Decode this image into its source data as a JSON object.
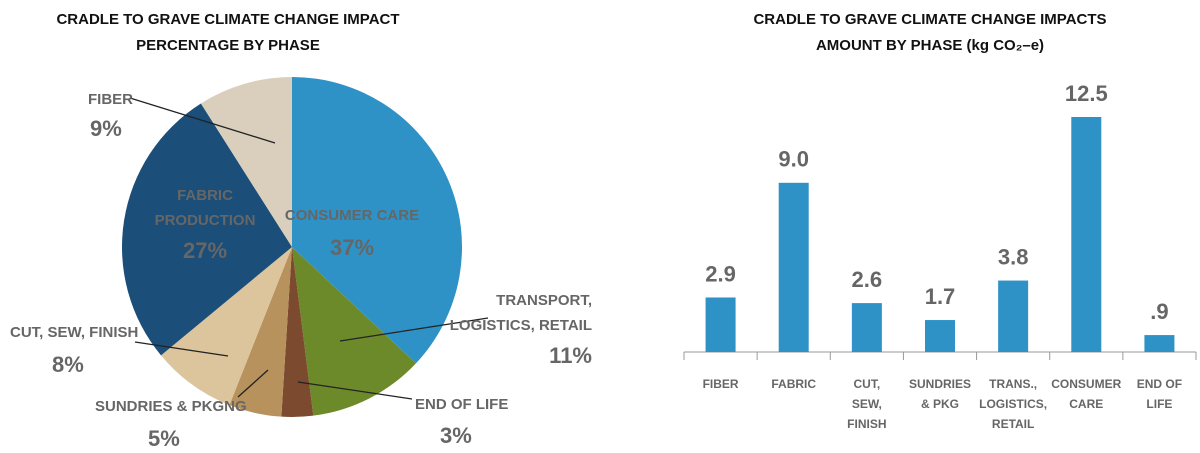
{
  "chart_data": [
    {
      "type": "pie",
      "title": [
        "CRADLE TO GRAVE CLIMATE CHANGE IMPACT",
        "PERCENTAGE BY PHASE"
      ],
      "categories": [
        [
          "CONSUMER CARE"
        ],
        [
          "TRANSPORT,",
          "LOGISTICS, RETAIL"
        ],
        [
          "END OF LIFE"
        ],
        [
          "SUNDRIES & PKGNG"
        ],
        [
          "CUT, SEW, FINISH"
        ],
        [
          "FABRIC",
          "PRODUCTION"
        ],
        [
          "FIBER"
        ]
      ],
      "values": [
        37,
        11,
        3,
        5,
        8,
        27,
        9
      ],
      "value_labels": [
        "37%",
        "11%",
        "3%",
        "5%",
        "8%",
        "27%",
        "9%"
      ],
      "colors": [
        "#2e92c6",
        "#6d8a2b",
        "#7b4a2f",
        "#b7925c",
        "#dcc49c",
        "#1b4e79",
        "#d9cfbc"
      ]
    },
    {
      "type": "bar",
      "title": [
        "CRADLE TO GRAVE CLIMATE CHANGE IMPACTS",
        "AMOUNT BY PHASE (kg CO₂–e)"
      ],
      "categories": [
        [
          "FIBER"
        ],
        [
          "FABRIC"
        ],
        [
          "CUT,",
          "SEW,",
          "FINISH"
        ],
        [
          "SUNDRIES",
          "& PKG"
        ],
        [
          "TRANS.,",
          "LOGISTICS,",
          "RETAIL"
        ],
        [
          "CONSUMER",
          "CARE"
        ],
        [
          "END OF",
          "LIFE"
        ]
      ],
      "values": [
        2.9,
        9.0,
        2.6,
        1.7,
        3.8,
        12.5,
        0.9
      ],
      "value_labels": [
        "2.9",
        "9.0",
        "2.6",
        "1.7",
        "3.8",
        "12.5",
        ".9"
      ],
      "color": "#2e92c6",
      "ylim": [
        0,
        12.5
      ]
    }
  ]
}
